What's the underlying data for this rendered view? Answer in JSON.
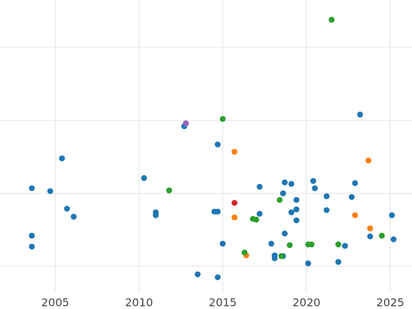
{
  "chart_data": {
    "type": "scatter",
    "title": "",
    "xlabel": "",
    "ylabel": "",
    "xlim": [
      2001.7,
      2026.3
    ],
    "ylim": [
      -0.35,
      3.65
    ],
    "x_ticks": [
      2005,
      2010,
      2015,
      2020,
      2025
    ],
    "x_tick_labels": [
      "2005",
      "2010",
      "2015",
      "2020",
      "2025"
    ],
    "y_gridlines": [
      0,
      1,
      2,
      3,
      4
    ],
    "grid": true,
    "legend": "none",
    "series": [
      {
        "color": "#1f77b4",
        "points": [
          [
            2003.6,
            1.07
          ],
          [
            2003.6,
            0.42
          ],
          [
            2003.6,
            0.27
          ],
          [
            2004.7,
            1.03
          ],
          [
            2005.4,
            1.48
          ],
          [
            2005.7,
            0.79
          ],
          [
            2006.1,
            0.68
          ],
          [
            2010.3,
            1.21
          ],
          [
            2011.0,
            0.74
          ],
          [
            2011.0,
            0.7
          ],
          [
            2012.7,
            1.92
          ],
          [
            2013.5,
            -0.11
          ],
          [
            2014.5,
            0.75
          ],
          [
            2014.7,
            1.67
          ],
          [
            2014.7,
            0.75
          ],
          [
            2014.7,
            -0.15
          ],
          [
            2015.0,
            0.31
          ],
          [
            2017.2,
            1.09
          ],
          [
            2017.2,
            0.72
          ],
          [
            2017.9,
            0.31
          ],
          [
            2018.1,
            0.15
          ],
          [
            2018.1,
            0.11
          ],
          [
            2018.6,
            1.0
          ],
          [
            2018.6,
            0.14
          ],
          [
            2018.7,
            1.15
          ],
          [
            2018.7,
            0.45
          ],
          [
            2019.1,
            1.13
          ],
          [
            2019.1,
            0.74
          ],
          [
            2019.4,
            0.91
          ],
          [
            2019.4,
            0.78
          ],
          [
            2019.4,
            0.63
          ],
          [
            2020.1,
            0.04
          ],
          [
            2020.4,
            1.17
          ],
          [
            2020.5,
            1.07
          ],
          [
            2021.2,
            0.96
          ],
          [
            2021.2,
            0.77
          ],
          [
            2021.9,
            0.06
          ],
          [
            2022.3,
            0.28
          ],
          [
            2022.7,
            0.95
          ],
          [
            2022.9,
            1.14
          ],
          [
            2023.2,
            2.08
          ],
          [
            2023.8,
            0.41
          ],
          [
            2025.1,
            0.7
          ],
          [
            2025.2,
            0.37
          ]
        ]
      },
      {
        "color": "#ff7f0e",
        "points": [
          [
            2015.7,
            1.57
          ],
          [
            2015.7,
            0.67
          ],
          [
            2016.4,
            0.15
          ],
          [
            2022.9,
            0.7
          ],
          [
            2023.7,
            1.45
          ],
          [
            2023.8,
            0.52
          ]
        ]
      },
      {
        "color": "#2ca02c",
        "points": [
          [
            2011.8,
            1.04
          ],
          [
            2015.0,
            2.02
          ],
          [
            2016.3,
            0.19
          ],
          [
            2016.8,
            0.65
          ],
          [
            2017.0,
            0.64
          ],
          [
            2018.4,
            0.91
          ],
          [
            2018.5,
            0.14
          ],
          [
            2019.0,
            0.29
          ],
          [
            2020.1,
            0.3
          ],
          [
            2020.3,
            0.3
          ],
          [
            2021.5,
            3.38
          ],
          [
            2021.9,
            0.3
          ],
          [
            2024.5,
            0.42
          ]
        ]
      },
      {
        "color": "#d62728",
        "points": [
          [
            2015.7,
            0.87
          ]
        ]
      },
      {
        "color": "#9467bd",
        "points": [
          [
            2012.8,
            1.96
          ]
        ]
      }
    ]
  }
}
